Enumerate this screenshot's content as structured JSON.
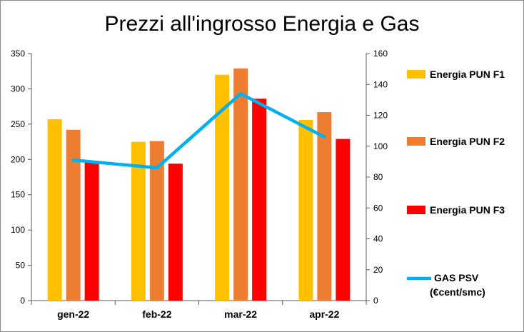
{
  "chart_data": {
    "type": "bar",
    "title": "Prezzi all'ingrosso Energia e Gas",
    "categories": [
      "gen-22",
      "feb-22",
      "mar-22",
      "apr-22"
    ],
    "series": [
      {
        "name": "Energia PUN F1",
        "type": "bar",
        "axis": "left",
        "color": "#FFC000",
        "values": [
          257,
          225,
          320,
          256
        ]
      },
      {
        "name": "Energia PUN F2",
        "type": "bar",
        "axis": "left",
        "color": "#ED7D31",
        "values": [
          242,
          226,
          329,
          267
        ]
      },
      {
        "name": "Energia PUN F3",
        "type": "bar",
        "axis": "left",
        "color": "#FF0000",
        "values": [
          196,
          194,
          286,
          229
        ]
      },
      {
        "name": "GAS PSV",
        "name_line2": "(€cent/smc)",
        "type": "line",
        "axis": "right",
        "color": "#00B0F0",
        "values": [
          91,
          86,
          134,
          106
        ]
      }
    ],
    "y_left": {
      "min": 0,
      "max": 350,
      "ticks": [
        0,
        50,
        100,
        150,
        200,
        250,
        300,
        350
      ]
    },
    "y_right": {
      "min": 0,
      "max": 160,
      "ticks": [
        0,
        20,
        40,
        60,
        80,
        100,
        120,
        140,
        160
      ]
    },
    "grid": false,
    "legend_position": "right"
  }
}
